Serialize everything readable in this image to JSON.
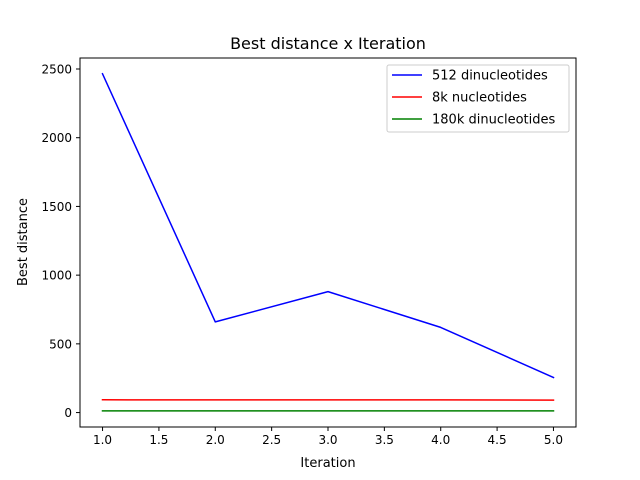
{
  "chart_data": {
    "type": "line",
    "title": "Best distance x Iteration",
    "xlabel": "Iteration",
    "ylabel": "Best distance",
    "x": [
      1,
      2,
      3,
      4,
      5
    ],
    "xlim": [
      0.8,
      5.2
    ],
    "ylim": [
      -105,
      2580
    ],
    "xticks": [
      1.0,
      1.5,
      2.0,
      2.5,
      3.0,
      3.5,
      4.0,
      4.5,
      5.0
    ],
    "xtick_labels": [
      "1.0",
      "1.5",
      "2.0",
      "2.5",
      "3.0",
      "3.5",
      "4.0",
      "4.5",
      "5.0"
    ],
    "yticks": [
      0,
      500,
      1000,
      1500,
      2000,
      2500
    ],
    "ytick_labels": [
      "0",
      "500",
      "1000",
      "1500",
      "2000",
      "2500"
    ],
    "grid": false,
    "legend_position": "top-right",
    "series": [
      {
        "name": "512 dinucleotides",
        "color": "#0000ff",
        "values": [
          2465,
          660,
          880,
          620,
          255
        ]
      },
      {
        "name": "8k nucleotides",
        "color": "#ff0000",
        "values": [
          93,
          92,
          92,
          92,
          91
        ]
      },
      {
        "name": "180k dinucleotides",
        "color": "#008000",
        "values": [
          12,
          12,
          12,
          12,
          12
        ]
      }
    ]
  }
}
